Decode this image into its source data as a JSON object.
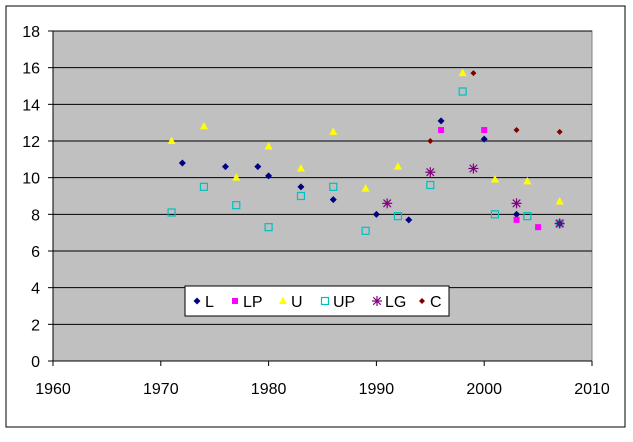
{
  "chart_data": {
    "type": "scatter",
    "title": "",
    "xlabel": "",
    "ylabel": "",
    "xlim": [
      1960,
      2010
    ],
    "ylim": [
      0,
      18
    ],
    "x_ticks": [
      1960,
      1970,
      1980,
      1990,
      2000,
      2010
    ],
    "y_ticks": [
      0,
      2,
      4,
      6,
      8,
      10,
      12,
      14,
      16,
      18
    ],
    "grid": "horizontal",
    "legend_position": "inside-bottom-center",
    "colors": {
      "plot_background": "#c0c0c0",
      "L": "#000080",
      "LP": "#ff00ff",
      "U": "#ffff00",
      "UP": "#00c0c0",
      "LG": "#800080",
      "C": "#800000"
    },
    "series": [
      {
        "name": "L",
        "marker": "diamond",
        "points": [
          [
            1972,
            10.8
          ],
          [
            1976,
            10.6
          ],
          [
            1979,
            10.6
          ],
          [
            1980,
            10.1
          ],
          [
            1983,
            9.5
          ],
          [
            1986,
            8.8
          ],
          [
            1990,
            8.0
          ],
          [
            1993,
            7.7
          ],
          [
            1996,
            13.1
          ],
          [
            2000,
            12.1
          ],
          [
            2003,
            8.0
          ],
          [
            2007,
            7.5
          ]
        ]
      },
      {
        "name": "LP",
        "marker": "square",
        "points": [
          [
            1996,
            12.6
          ],
          [
            2000,
            12.6
          ],
          [
            2003,
            7.7
          ],
          [
            2005,
            7.3
          ]
        ]
      },
      {
        "name": "U",
        "marker": "triangle",
        "points": [
          [
            1971,
            12.0
          ],
          [
            1974,
            12.8
          ],
          [
            1977,
            10.0
          ],
          [
            1980,
            11.7
          ],
          [
            1983,
            10.5
          ],
          [
            1986,
            12.5
          ],
          [
            1989,
            9.4
          ],
          [
            1992,
            10.6
          ],
          [
            1998,
            15.7
          ],
          [
            2001,
            9.9
          ],
          [
            2004,
            9.8
          ],
          [
            2007,
            8.7
          ]
        ]
      },
      {
        "name": "UP",
        "marker": "hollow-square",
        "points": [
          [
            1971,
            8.1
          ],
          [
            1974,
            9.5
          ],
          [
            1977,
            8.5
          ],
          [
            1980,
            7.3
          ],
          [
            1983,
            9.0
          ],
          [
            1986,
            9.5
          ],
          [
            1989,
            7.1
          ],
          [
            1992,
            7.9
          ],
          [
            1995,
            9.6
          ],
          [
            1998,
            14.7
          ],
          [
            2001,
            8.0
          ],
          [
            2004,
            7.9
          ],
          [
            2007,
            7.5
          ]
        ]
      },
      {
        "name": "LG",
        "marker": "star",
        "points": [
          [
            1991,
            8.6
          ],
          [
            1995,
            10.3
          ],
          [
            1999,
            10.5
          ],
          [
            2003,
            8.6
          ],
          [
            2007,
            7.5
          ]
        ]
      },
      {
        "name": "C",
        "marker": "small-diamond",
        "points": [
          [
            1995,
            12.0
          ],
          [
            1999,
            15.7
          ],
          [
            2003,
            12.6
          ],
          [
            2007,
            12.5
          ]
        ]
      }
    ]
  }
}
